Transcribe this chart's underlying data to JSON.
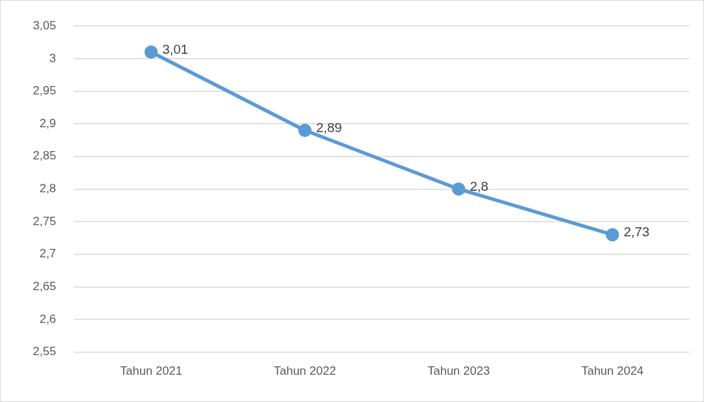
{
  "chart_data": {
    "type": "line",
    "categories": [
      "Tahun 2021",
      "Tahun 2022",
      "Tahun 2023",
      "Tahun 2024"
    ],
    "series": [
      {
        "color": "#5b9bd5",
        "values": [
          3.01,
          2.89,
          2.8,
          2.73
        ],
        "value_labels": [
          "3,01",
          "2,89",
          "2,8",
          "2,73"
        ]
      }
    ],
    "ylim": [
      2.55,
      3.05
    ],
    "yticks": [
      {
        "value": 2.55,
        "label": "2,55"
      },
      {
        "value": 2.6,
        "label": "2,6"
      },
      {
        "value": 2.65,
        "label": "2,65"
      },
      {
        "value": 2.7,
        "label": "2,7"
      },
      {
        "value": 2.75,
        "label": "2,75"
      },
      {
        "value": 2.8,
        "label": "2,8"
      },
      {
        "value": 2.85,
        "label": "2,85"
      },
      {
        "value": 2.9,
        "label": "2,9"
      },
      {
        "value": 2.95,
        "label": "2,95"
      },
      {
        "value": 3,
        "label": "3"
      },
      {
        "value": 3.05,
        "label": "3,05"
      }
    ],
    "grid": "y",
    "legend": false,
    "marker": "circle",
    "line_style": "solid"
  }
}
